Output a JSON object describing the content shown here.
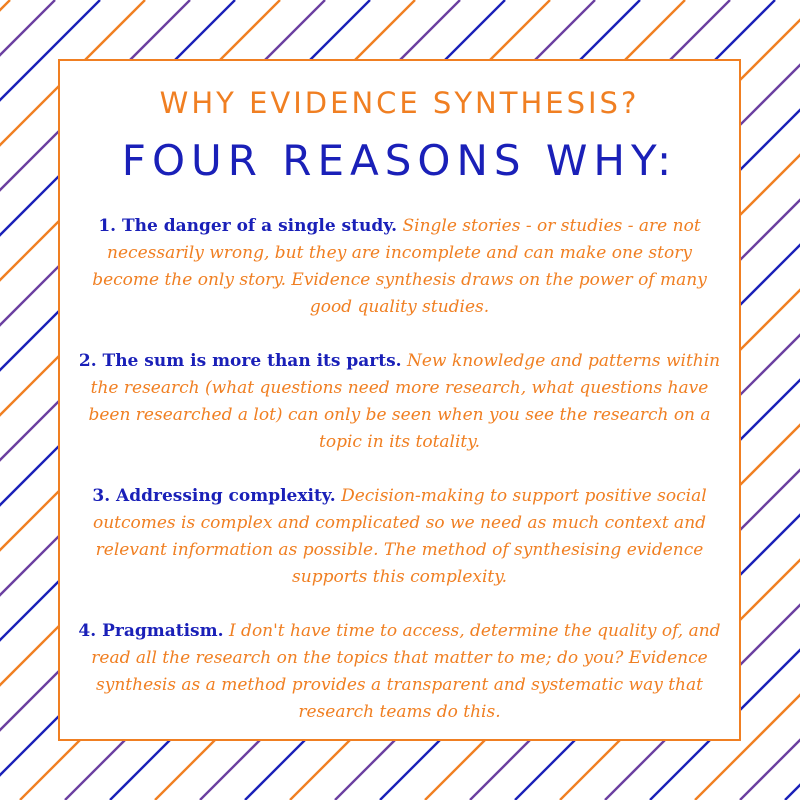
{
  "colors": {
    "orange": "#f07f22",
    "blue": "#1a20b8",
    "purple": "#6b3fa0",
    "background": "#ffffff"
  },
  "background_pattern": {
    "style": "diagonal-stripes",
    "stripe_colors": [
      "#f07f22",
      "#6b3fa0",
      "#1a20b8"
    ]
  },
  "card": {
    "kicker": "WHY EVIDENCE SYNTHESIS?",
    "headline": "FOUR REASONS WHY:",
    "reasons": [
      {
        "lead": "1. The danger of a single study.",
        "body": "Single stories - or studies - are not necessarily wrong, but they are incomplete and can make one story become the only story. Evidence synthesis draws on the power of many good quality studies."
      },
      {
        "lead": "2. The sum is more than its parts.",
        "body": "New knowledge and patterns within the research (what questions need more research, what questions have been researched a lot) can only be seen when you see the research on a topic in its totality."
      },
      {
        "lead": "3. Addressing complexity.",
        "body": "Decision-making to support positive social outcomes is complex and complicated so we need as much context and relevant information as possible. The method of synthesising evidence supports this complexity."
      },
      {
        "lead": "4. Pragmatism.",
        "body": "I don't have time to access, determine the quality of, and read all the research on the topics that matter to me; do you? Evidence synthesis as a method provides a transparent and systematic way that research teams do this."
      }
    ]
  }
}
